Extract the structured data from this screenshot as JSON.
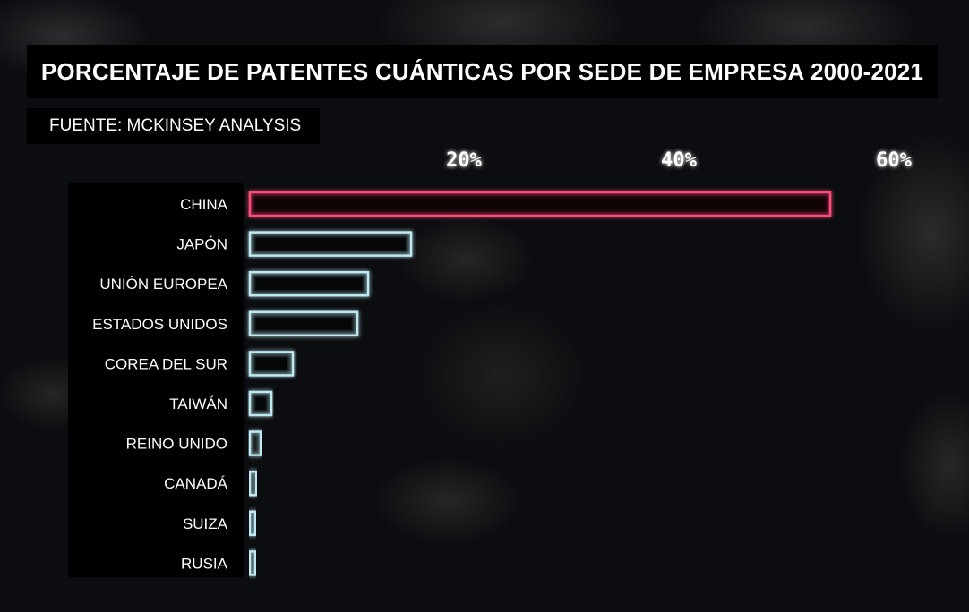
{
  "title": "PORCENTAJE DE PATENTES CUÁNTICAS POR SEDE DE EMPRESA 2000-2021",
  "source": "FUENTE: MCKINSEY ANALYSIS",
  "colors": {
    "highlight": "#ff4d7a",
    "bar": "#bfeaf2",
    "background": "#0b0d10"
  },
  "chart_data": {
    "type": "bar",
    "orientation": "horizontal",
    "categories": [
      "CHINA",
      "JAPÓN",
      "UNIÓN EUROPEA",
      "ESTADOS UNIDOS",
      "COREA DEL SUR",
      "TAIWÁN",
      "REINO UNIDO",
      "CANADÁ",
      "SUIZA",
      "RUSIA"
    ],
    "values": [
      54,
      15,
      11,
      10,
      4,
      2,
      1,
      0.6,
      0.5,
      0.4
    ],
    "highlight_category": "CHINA",
    "xlim": [
      0,
      62
    ],
    "xticks": [
      20,
      40,
      60
    ],
    "xtick_labels": [
      "20%",
      "40%",
      "60%"
    ],
    "axis_position": "top",
    "grid": false,
    "legend": "none"
  }
}
